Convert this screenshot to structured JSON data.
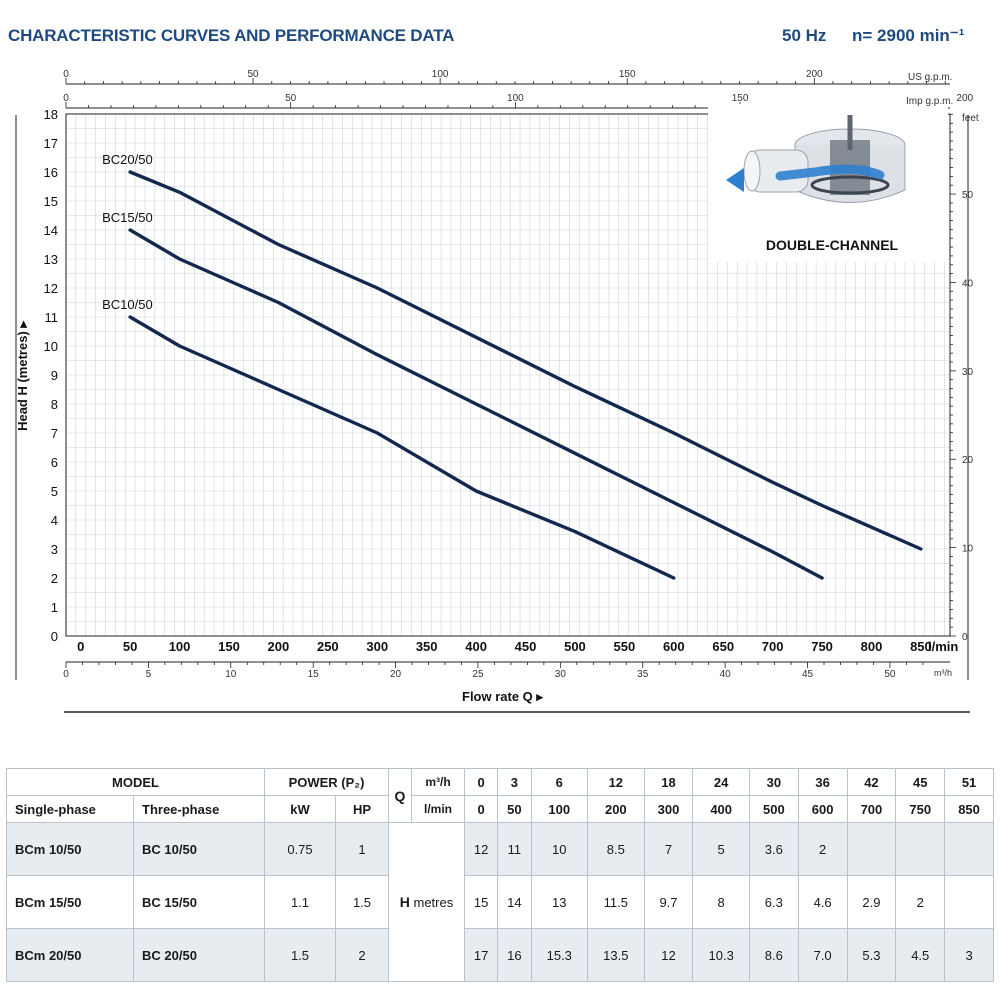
{
  "header": {
    "title": "CHARACTERISTIC CURVES AND PERFORMANCE DATA",
    "frequency": "50 Hz",
    "speed": "n= 2900 min⁻¹"
  },
  "chart_data": {
    "type": "line",
    "xlabel": "Flow rate Q",
    "ylabel": "Head H  (metres)",
    "x_unit": "l/min",
    "xlim": [
      0,
      900
    ],
    "ylim": [
      0,
      18
    ],
    "grid": true,
    "x_ticks": [
      0,
      50,
      100,
      150,
      200,
      250,
      300,
      350,
      400,
      450,
      500,
      550,
      600,
      650,
      700,
      750,
      800,
      850
    ],
    "y_ticks": [
      0,
      1,
      2,
      3,
      4,
      5,
      6,
      7,
      8,
      9,
      10,
      11,
      12,
      13,
      14,
      15,
      16,
      17,
      18
    ],
    "secondary_axes": {
      "m3h": {
        "label": "m³/h",
        "ticks": [
          0,
          5,
          10,
          15,
          20,
          25,
          30,
          35,
          40,
          45,
          50
        ]
      },
      "us_gpm": {
        "label": "US g.p.m.",
        "ticks": [
          0,
          50,
          100,
          150,
          200
        ]
      },
      "imp_gpm": {
        "label": "Imp g.p.m.",
        "ticks": [
          0,
          50,
          100,
          150,
          200
        ]
      },
      "feet": {
        "label": "feet",
        "ticks": [
          0,
          10,
          20,
          30,
          40,
          50
        ]
      }
    },
    "series": [
      {
        "name": "BC20/50",
        "x": [
          50,
          100,
          200,
          300,
          400,
          500,
          600,
          700,
          750,
          850
        ],
        "y": [
          16,
          15.3,
          13.5,
          12,
          10.3,
          8.6,
          7.0,
          5.3,
          4.5,
          3
        ]
      },
      {
        "name": "BC15/50",
        "x": [
          50,
          100,
          200,
          300,
          400,
          500,
          600,
          700,
          750
        ],
        "y": [
          14,
          13,
          11.5,
          9.7,
          8,
          6.3,
          4.6,
          2.9,
          2
        ]
      },
      {
        "name": "BC10/50",
        "x": [
          50,
          100,
          200,
          300,
          400,
          500,
          600
        ],
        "y": [
          11,
          10,
          8.5,
          7,
          5,
          3.6,
          2
        ]
      }
    ],
    "line_color": "#13284f",
    "inset_label": "DOUBLE-CHANNEL"
  },
  "table": {
    "headers": {
      "model": "MODEL",
      "power": "POWER (P₂)",
      "single": "Single-phase",
      "three": "Three-phase",
      "kw": "kW",
      "hp": "HP",
      "q": "Q",
      "m3h": "m³/h",
      "lmin": "l/min",
      "h": "H",
      "metres": "metres"
    },
    "q_m3h": [
      "0",
      "3",
      "6",
      "12",
      "18",
      "24",
      "30",
      "36",
      "42",
      "45",
      "51"
    ],
    "q_lmin": [
      "0",
      "50",
      "100",
      "200",
      "300",
      "400",
      "500",
      "600",
      "700",
      "750",
      "850"
    ],
    "rows": [
      {
        "single": "BCm 10/50",
        "three": "BC 10/50",
        "kw": "0.75",
        "hp": "1",
        "h": [
          "12",
          "11",
          "10",
          "8.5",
          "7",
          "5",
          "3.6",
          "2",
          "",
          "",
          ""
        ]
      },
      {
        "single": "BCm 15/50",
        "three": "BC 15/50",
        "kw": "1.1",
        "hp": "1.5",
        "h": [
          "15",
          "14",
          "13",
          "11.5",
          "9.7",
          "8",
          "6.3",
          "4.6",
          "2.9",
          "2",
          ""
        ]
      },
      {
        "single": "BCm 20/50",
        "three": "BC 20/50",
        "kw": "1.5",
        "hp": "2",
        "h": [
          "17",
          "16",
          "15.3",
          "13.5",
          "12",
          "10.3",
          "8.6",
          "7.0",
          "5.3",
          "4.5",
          "3"
        ]
      }
    ]
  }
}
